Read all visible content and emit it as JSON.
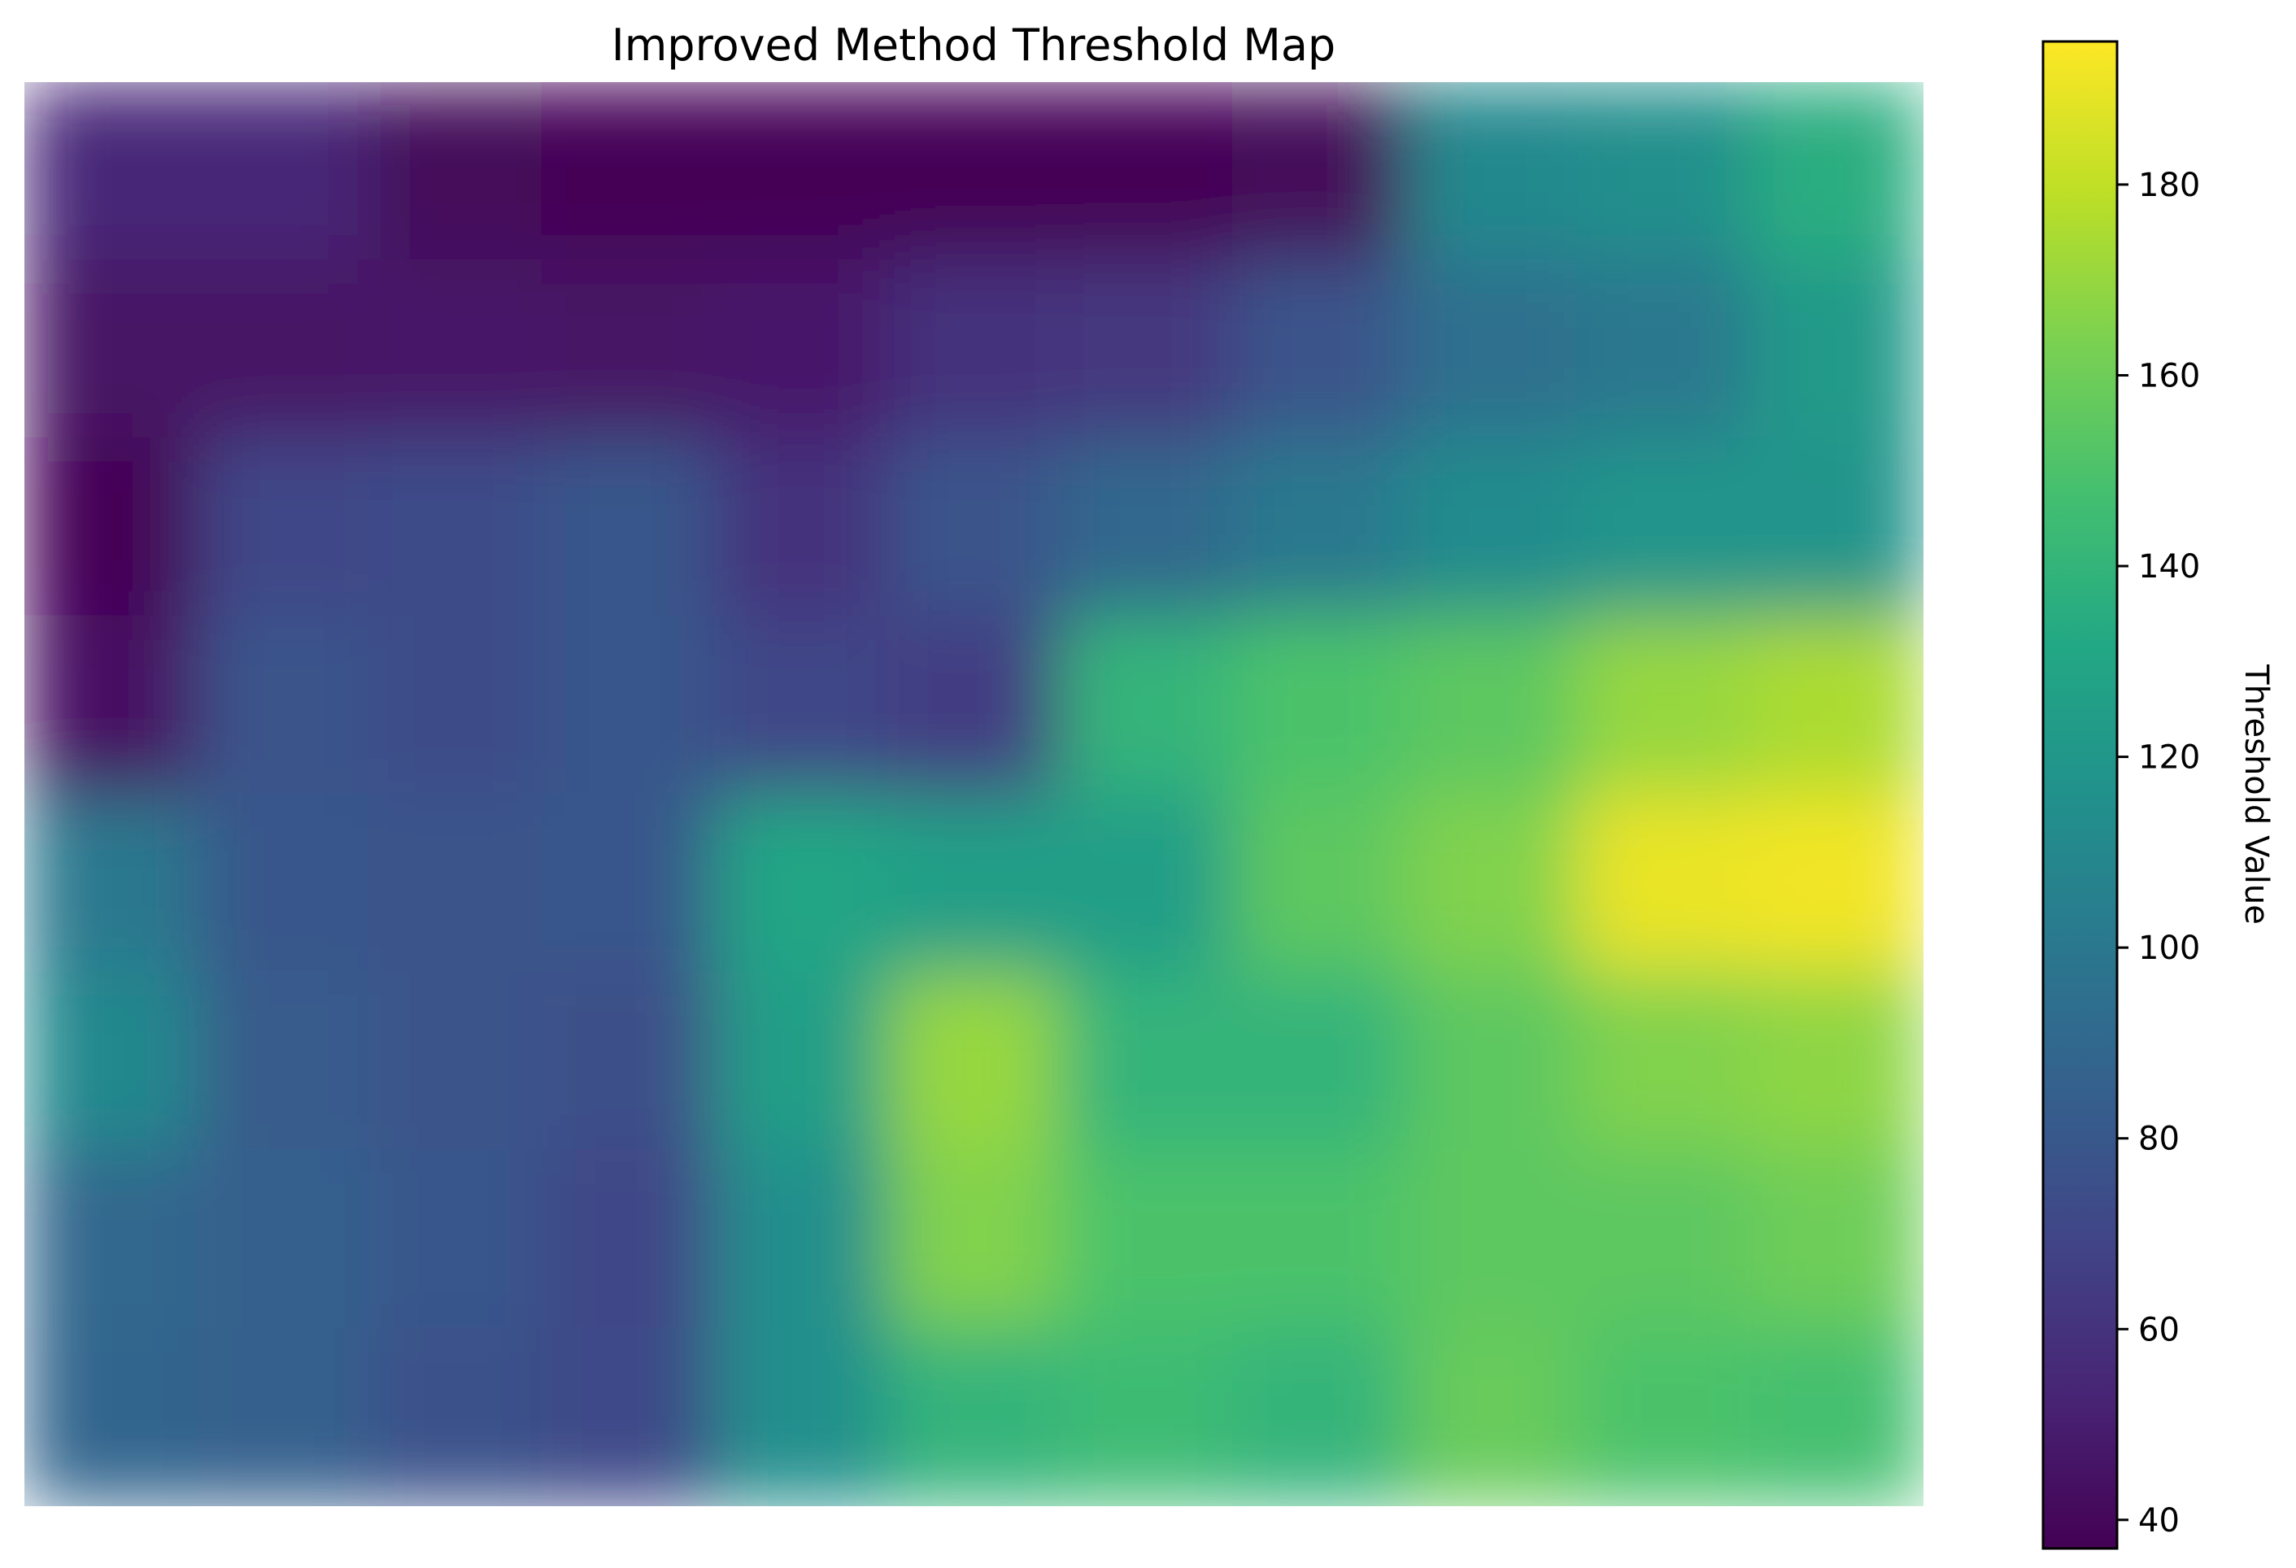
{
  "chart_data": {
    "type": "heatmap",
    "title": "Improved Method Threshold Map",
    "colormap": "viridis",
    "axes_visible": false,
    "interpolation": "smooth",
    "colorbar": {
      "label": "Threshold Value",
      "range": [
        37,
        195
      ],
      "ticks": [
        40,
        60,
        80,
        100,
        120,
        140,
        160,
        180
      ],
      "tick_labels": [
        "40",
        "60",
        "80",
        "100",
        "120",
        "140",
        "160",
        "180"
      ],
      "location": "right"
    },
    "rows": 8,
    "cols": 11,
    "values": [
      [
        55,
        55,
        40,
        38,
        38,
        38,
        38,
        40,
        110,
        115,
        135
      ],
      [
        45,
        45,
        46,
        45,
        48,
        60,
        62,
        78,
        95,
        100,
        122
      ],
      [
        38,
        70,
        73,
        80,
        60,
        78,
        90,
        100,
        112,
        118,
        118
      ],
      [
        44,
        78,
        73,
        80,
        70,
        65,
        140,
        150,
        155,
        170,
        175
      ],
      [
        100,
        80,
        78,
        80,
        130,
        125,
        125,
        155,
        165,
        190,
        192
      ],
      [
        110,
        82,
        78,
        75,
        125,
        170,
        140,
        140,
        155,
        165,
        168
      ],
      [
        90,
        85,
        80,
        70,
        115,
        165,
        150,
        150,
        155,
        155,
        160
      ],
      [
        88,
        85,
        76,
        72,
        115,
        140,
        145,
        140,
        158,
        150,
        148
      ]
    ]
  }
}
